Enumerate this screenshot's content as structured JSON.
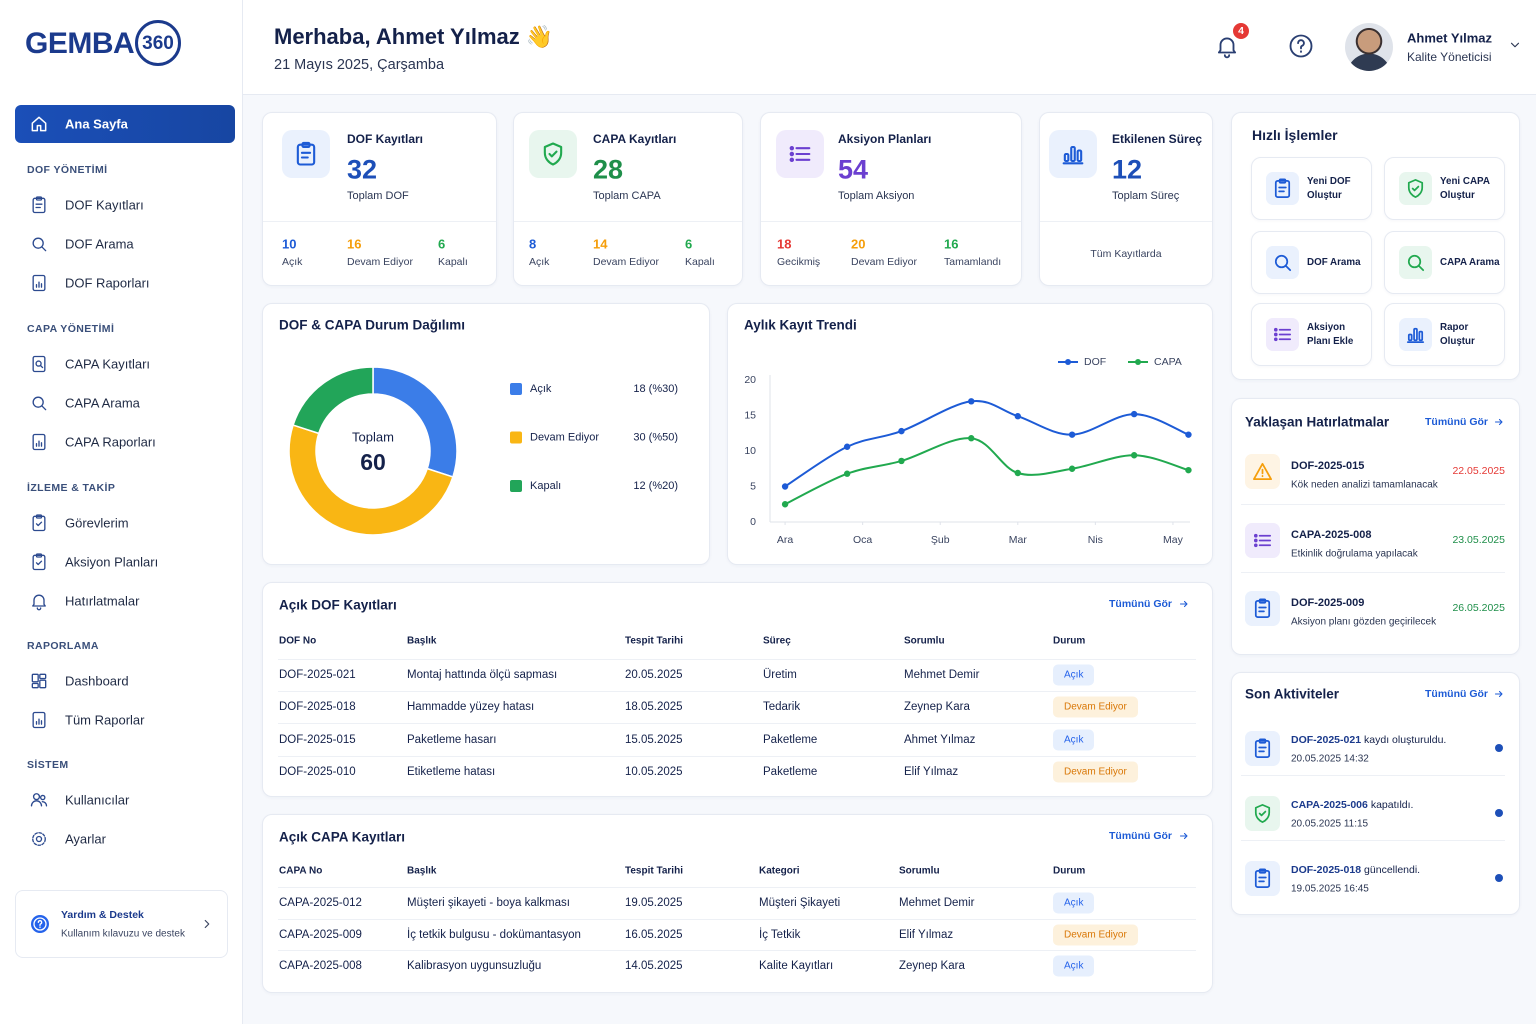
{
  "brand": {
    "name": "GEMBA",
    "badge": "360"
  },
  "header": {
    "greeting": "Merhaba, Ahmet Yılmaz 👋",
    "date": "21 Mayıs 2025, Çarşamba",
    "notifications": 4,
    "user": {
      "name": "Ahmet Yılmaz",
      "role": "Kalite Yöneticisi"
    }
  },
  "sidebar": {
    "active": "Ana Sayfa",
    "sections": [
      {
        "title": "DOF YÖNETİMİ",
        "items": [
          "DOF Kayıtları",
          "DOF Arama",
          "DOF Raporları"
        ]
      },
      {
        "title": "CAPA YÖNETİMİ",
        "items": [
          "CAPA Kayıtları",
          "CAPA Arama",
          "CAPA Raporları"
        ]
      },
      {
        "title": "İZLEME & TAKİP",
        "items": [
          "Görevlerim",
          "Aksiyon Planları",
          "Hatırlatmalar"
        ]
      },
      {
        "title": "RAPORLAMA",
        "items": [
          "Dashboard",
          "Tüm Raporlar"
        ]
      },
      {
        "title": "SİSTEM",
        "items": [
          "Kullanıcılar",
          "Ayarlar"
        ]
      }
    ],
    "help": {
      "title": "Yardım & Destek",
      "subtitle": "Kullanım kılavuzu ve destek"
    }
  },
  "stats": [
    {
      "title": "DOF Kayıtları",
      "value": 32,
      "caption": "Toplam DOF",
      "breakdown": [
        {
          "value": 10,
          "label": "Açık"
        },
        {
          "value": 16,
          "label": "Devam Ediyor"
        },
        {
          "value": 6,
          "label": "Kapalı"
        }
      ]
    },
    {
      "title": "CAPA Kayıtları",
      "value": 28,
      "caption": "Toplam CAPA",
      "breakdown": [
        {
          "value": 8,
          "label": "Açık"
        },
        {
          "value": 14,
          "label": "Devam Ediyor"
        },
        {
          "value": 6,
          "label": "Kapalı"
        }
      ]
    },
    {
      "title": "Aksiyon Planları",
      "value": 54,
      "caption": "Toplam Aksiyon",
      "breakdown": [
        {
          "value": 18,
          "label": "Gecikmiş"
        },
        {
          "value": 20,
          "label": "Devam Ediyor"
        },
        {
          "value": 16,
          "label": "Tamamlandı"
        }
      ]
    },
    {
      "title": "Etkilenen Süreç",
      "value": 12,
      "caption": "Toplam Süreç",
      "note": "Tüm Kayıtlarda"
    }
  ],
  "quick_actions": {
    "title": "Hızlı İşlemler",
    "items": [
      "Yeni DOF Oluştur",
      "Yeni CAPA Oluştur",
      "DOF Arama",
      "CAPA Arama",
      "Aksiyon Planı Ekle",
      "Rapor Oluştur"
    ]
  },
  "chart_data": [
    {
      "type": "donut",
      "title": "DOF & CAPA Durum Dağılımı",
      "center_label": "Toplam",
      "total": 60,
      "categories": [
        "Açık",
        "Devam Ediyor",
        "Kapalı"
      ],
      "values": [
        18,
        30,
        12
      ],
      "value_labels": [
        "18 (%30)",
        "30 (%50)",
        "12 (%20)"
      ],
      "colors": [
        "#3b7de8",
        "#f9b614",
        "#22a559"
      ]
    },
    {
      "type": "line",
      "title": "Aylık Kayıt Trendi",
      "x": [
        0,
        0.8,
        1.5,
        2.4,
        3,
        3.7,
        4.5,
        5.2
      ],
      "xlim": [
        -0.13,
        5.22
      ],
      "xticks": [
        {
          "value": 0,
          "label": "Ara"
        },
        {
          "value": 1,
          "label": "Oca"
        },
        {
          "value": 2,
          "label": "Şub"
        },
        {
          "value": 3,
          "label": "Mar"
        },
        {
          "value": 4,
          "label": "Nis"
        },
        {
          "value": 5,
          "label": "May"
        }
      ],
      "ylim": [
        0,
        20
      ],
      "yticks": [
        0,
        5,
        10,
        15,
        20
      ],
      "legend": "top-right",
      "series": [
        {
          "name": "DOF",
          "color": "#1d5bd6",
          "values": [
            5,
            10.6,
            12.8,
            17,
            14.9,
            12.3,
            15.2,
            12.3
          ]
        },
        {
          "name": "CAPA",
          "color": "#21a94f",
          "values": [
            2.5,
            6.8,
            8.6,
            11.8,
            6.9,
            7.5,
            9.4,
            7.3
          ]
        }
      ]
    }
  ],
  "dof_table": {
    "title": "Açık DOF Kayıtları",
    "link": "Tümünü Gör",
    "columns": [
      "DOF No",
      "Başlık",
      "Tespit Tarihi",
      "Süreç",
      "Sorumlu",
      "Durum"
    ],
    "rows": [
      [
        "DOF-2025-021",
        "Montaj hattında ölçü sapması",
        "20.05.2025",
        "Üretim",
        "Mehmet Demir",
        "Açık"
      ],
      [
        "DOF-2025-018",
        "Hammadde yüzey hatası",
        "18.05.2025",
        "Tedarik",
        "Zeynep Kara",
        "Devam Ediyor"
      ],
      [
        "DOF-2025-015",
        "Paketleme hasarı",
        "15.05.2025",
        "Paketleme",
        "Ahmet Yılmaz",
        "Açık"
      ],
      [
        "DOF-2025-010",
        "Etiketleme hatası",
        "10.05.2025",
        "Paketleme",
        "Elif Yılmaz",
        "Devam Ediyor"
      ]
    ]
  },
  "capa_table": {
    "title": "Açık CAPA Kayıtları",
    "link": "Tümünü Gör",
    "columns": [
      "CAPA No",
      "Başlık",
      "Tespit Tarihi",
      "Kategori",
      "Sorumlu",
      "Durum"
    ],
    "rows": [
      [
        "CAPA-2025-012",
        "Müşteri şikayeti - boya kalkması",
        "19.05.2025",
        "Müşteri Şikayeti",
        "Mehmet Demir",
        "Açık"
      ],
      [
        "CAPA-2025-009",
        "İç tetkik bulgusu - dokümantasyon",
        "16.05.2025",
        "İç Tetkik",
        "Elif Yılmaz",
        "Devam Ediyor"
      ],
      [
        "CAPA-2025-008",
        "Kalibrasyon uygunsuzluğu",
        "14.05.2025",
        "Kalite Kayıtları",
        "Zeynep Kara",
        "Açık"
      ]
    ]
  },
  "reminders": {
    "title": "Yaklaşan Hatırlatmalar",
    "link": "Tümünü Gör",
    "items": [
      {
        "id": "DOF-2025-015",
        "text": "Kök neden analizi tamamlanacak",
        "date": "22.05.2025"
      },
      {
        "id": "CAPA-2025-008",
        "text": "Etkinlik doğrulama yapılacak",
        "date": "23.05.2025"
      },
      {
        "id": "DOF-2025-009",
        "text": "Aksiyon planı gözden geçirilecek",
        "date": "26.05.2025"
      }
    ]
  },
  "activities": {
    "title": "Son Aktiviteler",
    "link": "Tümünü Gör",
    "items": [
      {
        "id": "DOF-2025-021",
        "text": "kaydı oluşturuldu.",
        "time": "20.05.2025 14:32"
      },
      {
        "id": "CAPA-2025-006",
        "text": "kapatıldı.",
        "time": "20.05.2025 11:15"
      },
      {
        "id": "DOF-2025-018",
        "text": "güncellendi.",
        "time": "19.05.2025 16:45"
      }
    ]
  }
}
